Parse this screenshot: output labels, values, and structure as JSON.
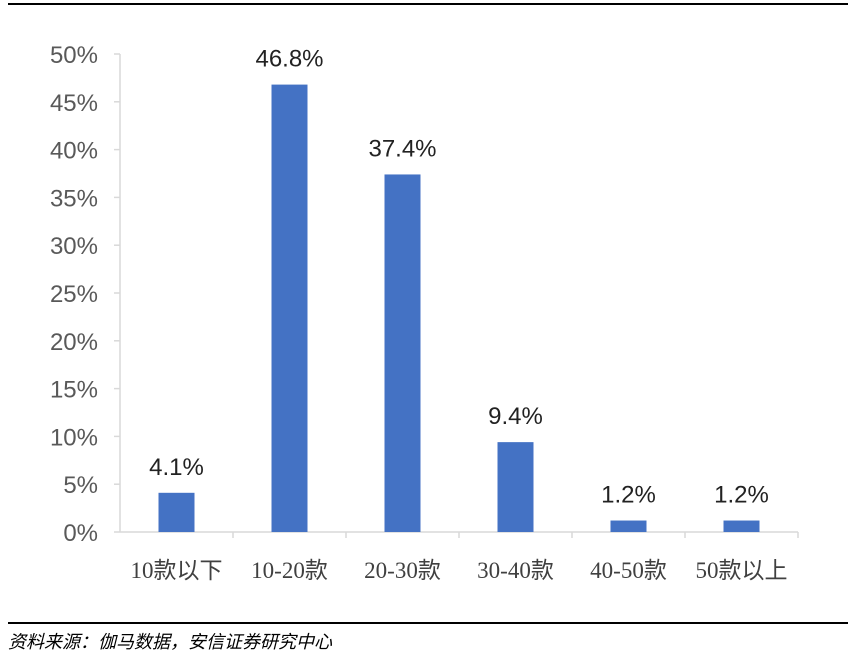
{
  "source_note": "资料来源：伽马数据，安信证券研究中心",
  "chart_data": {
    "type": "bar",
    "categories": [
      "10款以下",
      "10-20款",
      "20-30款",
      "30-40款",
      "40-50款",
      "50款以上"
    ],
    "values": [
      4.1,
      46.8,
      37.4,
      9.4,
      1.2,
      1.2
    ],
    "data_labels": [
      "4.1%",
      "46.8%",
      "37.4%",
      "9.4%",
      "1.2%",
      "1.2%"
    ],
    "y_ticks": [
      "0%",
      "5%",
      "10%",
      "15%",
      "20%",
      "25%",
      "30%",
      "35%",
      "40%",
      "45%",
      "50%"
    ],
    "ylim": [
      0,
      50
    ],
    "grid": false,
    "legend": "none",
    "bar_color": "#4472C4",
    "axis_color": "#D9D9D9"
  }
}
